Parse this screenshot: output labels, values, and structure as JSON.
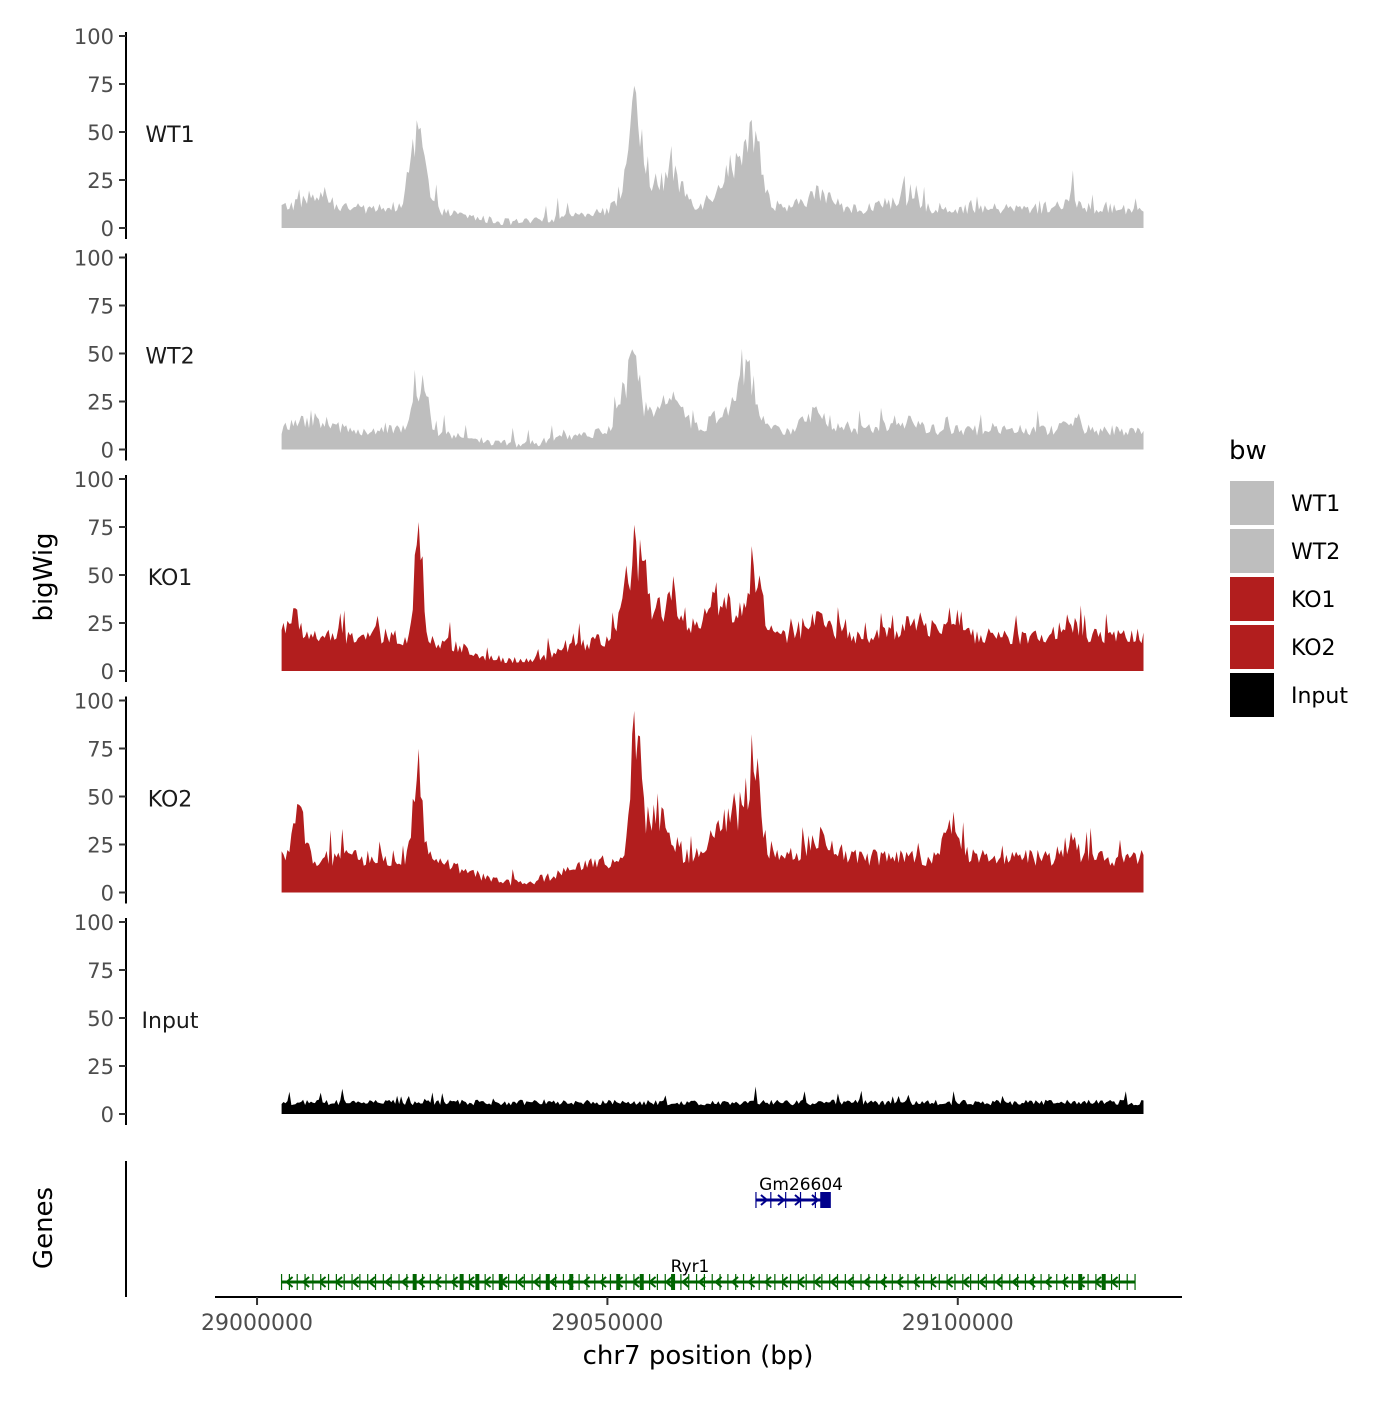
{
  "chart_data": {
    "type": "area",
    "ylabel": "bigWig",
    "xlabel": "chr7 position (bp)",
    "genes_label": "Genes",
    "ylim": [
      0,
      100
    ],
    "yticks": [
      "0",
      "25",
      "50",
      "75",
      "100"
    ],
    "xlim": [
      28994000,
      29132000
    ],
    "xticks": [
      {
        "value": 29000000,
        "label": "29000000"
      },
      {
        "value": 29050000,
        "label": "29050000"
      },
      {
        "value": 29100000,
        "label": "29100000"
      }
    ],
    "data_range": [
      29003500,
      29126500
    ],
    "legend": {
      "title": "bw",
      "position": "right",
      "entries": [
        {
          "label": "WT1",
          "color": "#bebebe"
        },
        {
          "label": "WT2",
          "color": "#bebebe"
        },
        {
          "label": "KO1",
          "color": "#b21e1e"
        },
        {
          "label": "KO2",
          "color": "#b21e1e"
        },
        {
          "label": "Input",
          "color": "#000000"
        }
      ]
    },
    "series": [
      {
        "name": "WT1",
        "color": "#bebebe",
        "baseline": 10,
        "noise": 6,
        "peaks": [
          [
            29008000,
            6,
            3000
          ],
          [
            29023000,
            38,
            1400
          ],
          [
            29054000,
            45,
            1800
          ],
          [
            29059000,
            18,
            2500
          ],
          [
            29068000,
            22,
            3000
          ],
          [
            29071000,
            25,
            1500
          ],
          [
            29080000,
            8,
            2500
          ],
          [
            29092000,
            5,
            3000
          ],
          [
            29116000,
            6,
            1500
          ]
        ],
        "dips": [
          [
            29037000,
            7,
            9000
          ]
        ]
      },
      {
        "name": "WT2",
        "color": "#bebebe",
        "baseline": 10,
        "noise": 6,
        "peaks": [
          [
            29008000,
            6,
            3000
          ],
          [
            29023000,
            26,
            1400
          ],
          [
            29053500,
            32,
            1800
          ],
          [
            29059000,
            14,
            2500
          ],
          [
            29068000,
            14,
            3000
          ],
          [
            29070000,
            20,
            1500
          ],
          [
            29080000,
            8,
            2500
          ],
          [
            29092000,
            5,
            3000
          ],
          [
            29116000,
            5,
            1500
          ]
        ],
        "dips": [
          [
            29037000,
            7,
            9000
          ]
        ]
      },
      {
        "name": "KO1",
        "color": "#b21e1e",
        "baseline": 18,
        "noise": 7,
        "peaks": [
          [
            29005000,
            10,
            1500
          ],
          [
            29023000,
            70,
            700
          ],
          [
            29054000,
            45,
            1800
          ],
          [
            29059000,
            18,
            2500
          ],
          [
            29066000,
            20,
            3000
          ],
          [
            29071000,
            35,
            1500
          ],
          [
            29080000,
            10,
            2500
          ],
          [
            29094000,
            8,
            3000
          ],
          [
            29099000,
            12,
            1500
          ],
          [
            29116000,
            8,
            1500
          ]
        ],
        "dips": [
          [
            29037000,
            13,
            9000
          ]
        ]
      },
      {
        "name": "KO2",
        "color": "#b21e1e",
        "baseline": 18,
        "noise": 7,
        "peaks": [
          [
            29006000,
            20,
            1200
          ],
          [
            29023000,
            50,
            900
          ],
          [
            29054000,
            70,
            900
          ],
          [
            29057000,
            25,
            2000
          ],
          [
            29068000,
            25,
            3000
          ],
          [
            29071000,
            45,
            1200
          ],
          [
            29080000,
            10,
            2500
          ],
          [
            29099000,
            18,
            1500
          ],
          [
            29116000,
            8,
            1500
          ]
        ],
        "dips": [
          [
            29037000,
            13,
            9000
          ]
        ]
      },
      {
        "name": "Input",
        "color": "#000000",
        "baseline": 6,
        "noise": 4,
        "peaks": [],
        "dips": []
      }
    ],
    "genes": [
      {
        "name": "Gm26604",
        "color": "#00008b",
        "start": 29071200,
        "end": 29081800,
        "strand": "+",
        "row": 1
      },
      {
        "name": "Ryr1",
        "color": "#006400",
        "start": 29003500,
        "end": 29125300,
        "strand": "-",
        "row": 2
      }
    ]
  }
}
